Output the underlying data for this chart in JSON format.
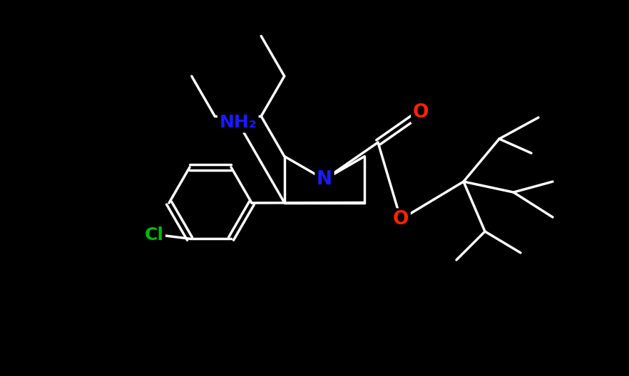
{
  "background_color": "#000000",
  "bond_color": "#ffffff",
  "bond_width": 2.5,
  "atom_colors": {
    "N": "#1a1aff",
    "O": "#ff2200",
    "Cl": "#00bb00",
    "NH2": "#1a1aff"
  },
  "fig_width": 8.82,
  "fig_height": 5.28,
  "dpi": 100
}
